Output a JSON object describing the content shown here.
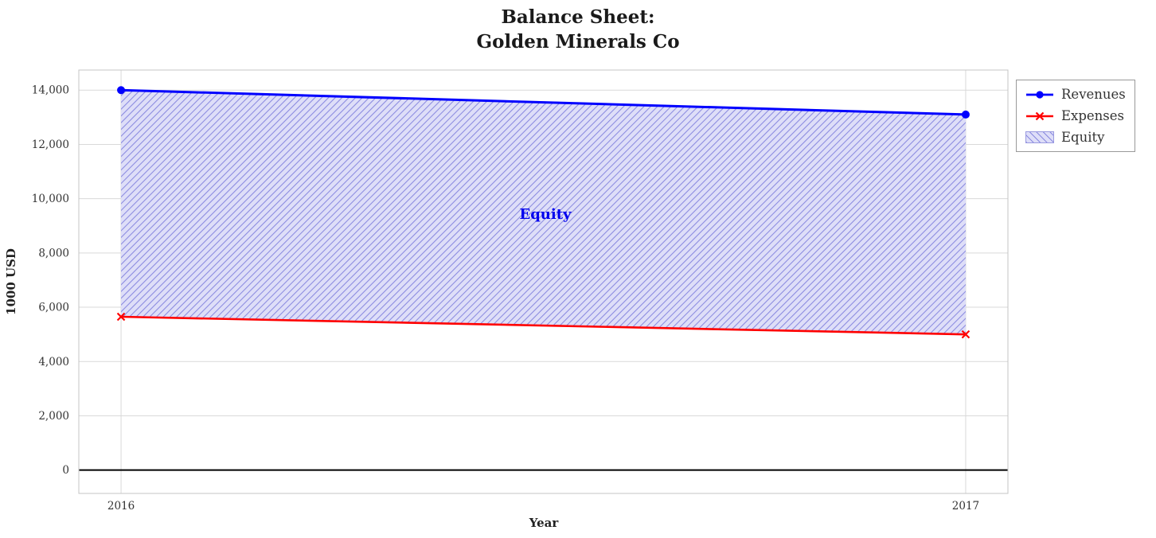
{
  "title": "Balance Sheet:\nGolden Minerals Co",
  "chart_data": {
    "type": "line",
    "title": "Balance Sheet: Golden Minerals Co",
    "xlabel": "Year",
    "ylabel": "1000 USD",
    "x": [
      2016,
      2017
    ],
    "series": [
      {
        "name": "Revenues",
        "values": [
          14000,
          13100
        ],
        "color": "#0000ff",
        "marker": "circle",
        "line_width": 3
      },
      {
        "name": "Expenses",
        "values": [
          5650,
          5000
        ],
        "color": "#ff0000",
        "marker": "x",
        "line_width": 2.6
      }
    ],
    "area": {
      "name": "Equity",
      "label": "Equity",
      "between": [
        "Revenues",
        "Expenses"
      ],
      "fill": "#dedef8",
      "hatch_color": "#8a8ae0",
      "label_color": "#0000ee"
    },
    "xlim": [
      2015.95,
      2017.05
    ],
    "ylim": [
      -860,
      14740
    ],
    "yticks": [
      0,
      2000,
      4000,
      6000,
      8000,
      10000,
      12000,
      14000
    ],
    "xticks": [
      2016,
      2017
    ],
    "grid": true,
    "zero_line": true,
    "legend": {
      "position": "upper right outside",
      "entries": [
        "Revenues",
        "Expenses",
        "Equity"
      ]
    }
  }
}
